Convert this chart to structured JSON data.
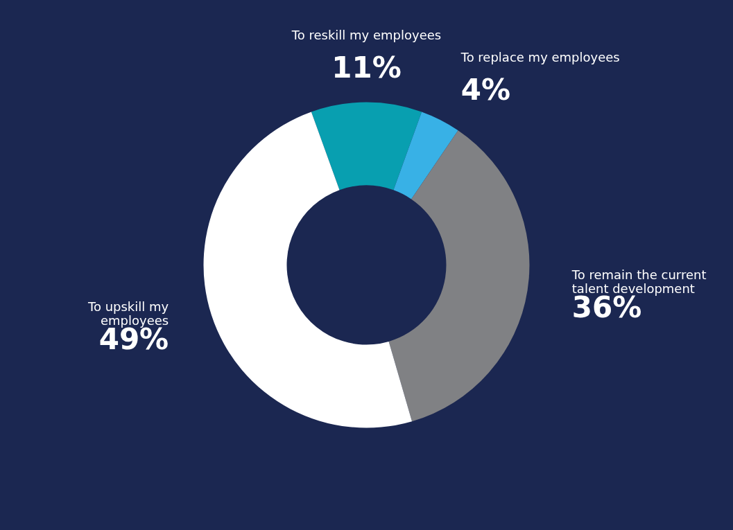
{
  "chart_data": {
    "type": "donut",
    "categories": [
      "To reskill my employees",
      "To replace my employees",
      "To remain the current\ntalent development",
      "To upskill my\nemployees"
    ],
    "values": [
      11,
      4,
      36,
      49
    ],
    "value_labels": [
      "11%",
      "4%",
      "36%",
      "49%"
    ],
    "colors": [
      "#089fb0",
      "#38b1e6",
      "#808184",
      "#ffffff"
    ]
  }
}
